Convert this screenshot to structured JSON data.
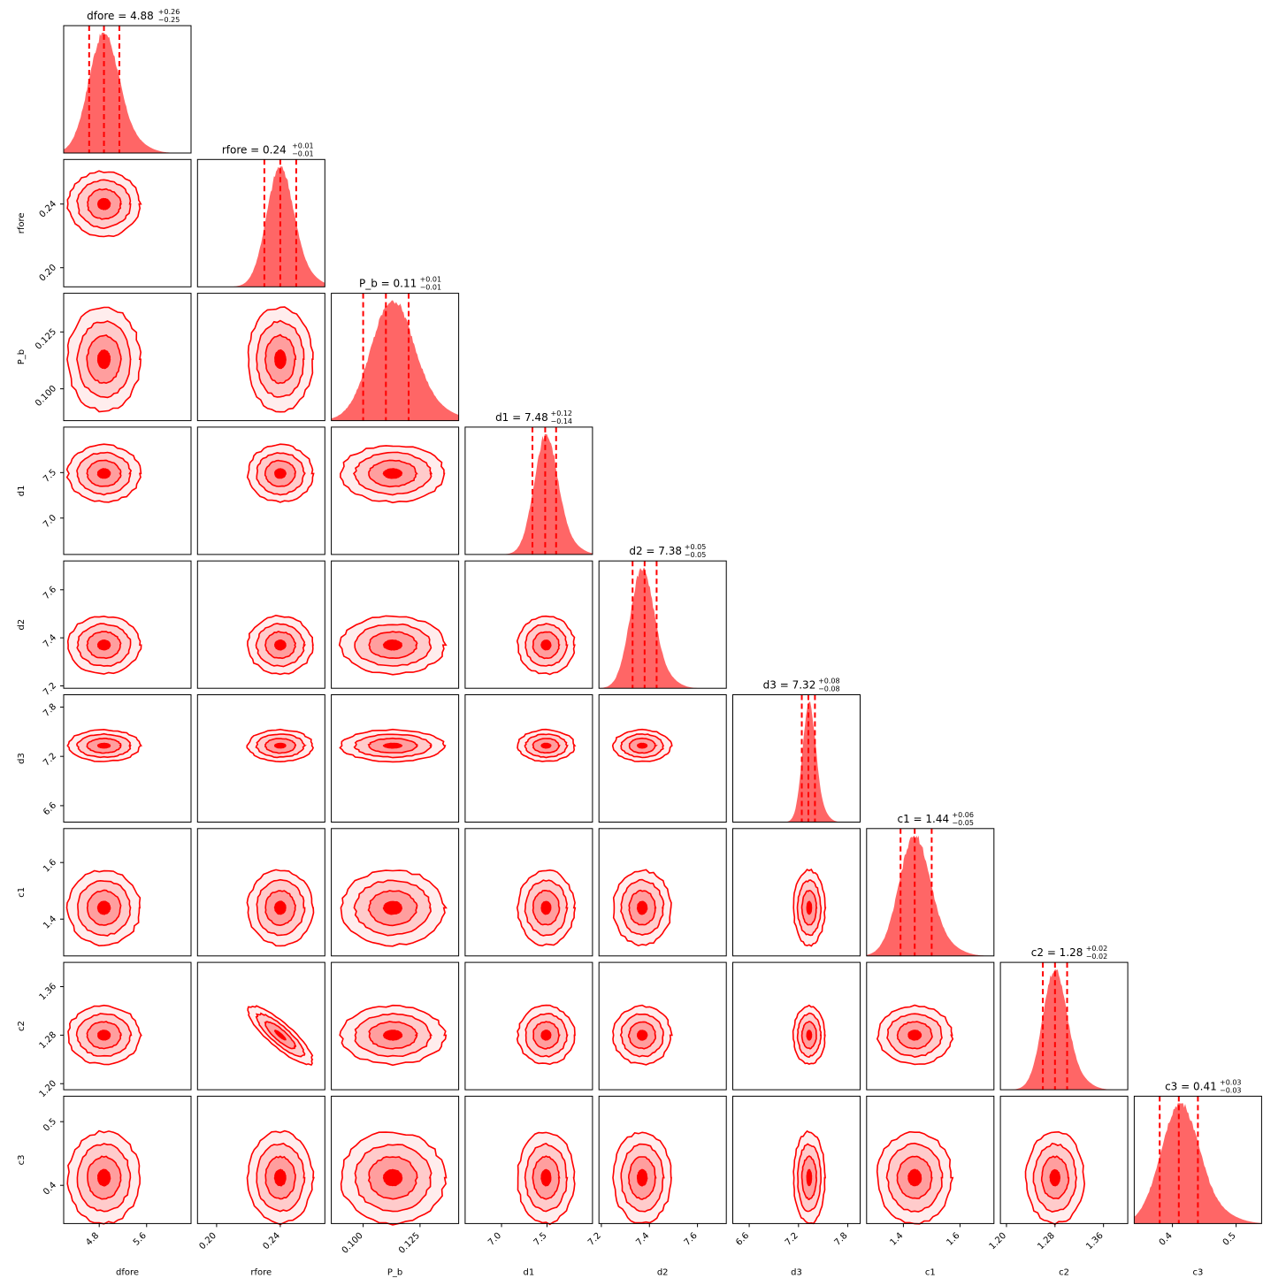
{
  "chart_data": {
    "type": "corner",
    "color": "#ff0000",
    "parameters": [
      {
        "name": "dfore",
        "label": "dfore",
        "median": 4.88,
        "plus": "0.26",
        "minus": "0.25",
        "range": [
          4.2,
          6.35
        ],
        "peak": 4.88,
        "sigma": 0.255,
        "ticks": [
          4.8,
          5.6
        ],
        "tick_labels": [
          "4.8",
          "5.6"
        ],
        "title": {
          "main": "dfore = 4.88",
          "sup": "+0.26",
          "sub": "−0.25"
        }
      },
      {
        "name": "rfore",
        "label": "rfore",
        "median": 0.24,
        "plus": "0.01",
        "minus": "0.01",
        "range": [
          0.188,
          0.268
        ],
        "peak": 0.24,
        "sigma": 0.0085,
        "ticks": [
          0.2,
          0.24
        ],
        "tick_labels": [
          "0.20",
          "0.24"
        ],
        "title": {
          "main": "rfore = 0.24",
          "sup": "+0.01",
          "sub": "−0.01"
        }
      },
      {
        "name": "P_b",
        "label": "P_b",
        "median": 0.11,
        "plus": "0.01",
        "minus": "0.01",
        "range": [
          0.086,
          0.142
        ],
        "peak": 0.113,
        "sigma": 0.0095,
        "ticks": [
          0.1,
          0.125
        ],
        "tick_labels": [
          "0.100",
          "0.125"
        ],
        "title": {
          "main": "P_b = 0.11",
          "sup": "+0.01",
          "sub": "−0.01"
        }
      },
      {
        "name": "d1",
        "label": "d1",
        "median": 7.48,
        "plus": "0.12",
        "minus": "0.14",
        "range": [
          6.6,
          8.0
        ],
        "peak": 7.49,
        "sigma": 0.13,
        "ticks": [
          7.0,
          7.5
        ],
        "tick_labels": [
          "7.0",
          "7.5"
        ],
        "title": {
          "main": "d1 = 7.48",
          "sup": "+0.12",
          "sub": "−0.14"
        }
      },
      {
        "name": "d2",
        "label": "d2",
        "median": 7.38,
        "plus": "0.05",
        "minus": "0.05",
        "range": [
          7.19,
          7.72
        ],
        "peak": 7.37,
        "sigma": 0.05,
        "ticks": [
          7.2,
          7.4,
          7.6
        ],
        "tick_labels": [
          "7.2",
          "7.4",
          "7.6"
        ],
        "title": {
          "main": "d2 = 7.38",
          "sup": "+0.05",
          "sub": "−0.05"
        }
      },
      {
        "name": "d3",
        "label": "d3",
        "median": 7.32,
        "plus": "0.08",
        "minus": "0.08",
        "range": [
          6.4,
          7.95
        ],
        "peak": 7.33,
        "sigma": 0.08,
        "ticks": [
          6.6,
          7.2,
          7.8
        ],
        "tick_labels": [
          "6.6",
          "7.2",
          "7.8"
        ],
        "title": {
          "main": "d3 = 7.32",
          "sup": "+0.08",
          "sub": "−0.08"
        }
      },
      {
        "name": "c1",
        "label": "c1",
        "median": 1.44,
        "plus": "0.06",
        "minus": "0.05",
        "range": [
          1.27,
          1.72
        ],
        "peak": 1.44,
        "sigma": 0.055,
        "ticks": [
          1.4,
          1.6
        ],
        "tick_labels": [
          "1.4",
          "1.6"
        ],
        "title": {
          "main": "c1 = 1.44",
          "sup": "+0.06",
          "sub": "−0.05"
        }
      },
      {
        "name": "c2",
        "label": "c2",
        "median": 1.28,
        "plus": "0.02",
        "minus": "0.02",
        "range": [
          1.19,
          1.4
        ],
        "peak": 1.28,
        "sigma": 0.02,
        "ticks": [
          1.2,
          1.28,
          1.36
        ],
        "tick_labels": [
          "1.20",
          "1.28",
          "1.36"
        ],
        "title": {
          "main": "c2 = 1.28",
          "sup": "+0.02",
          "sub": "−0.02"
        }
      },
      {
        "name": "c3",
        "label": "c3",
        "median": 0.41,
        "plus": "0.03",
        "minus": "0.03",
        "range": [
          0.34,
          0.54
        ],
        "peak": 0.412,
        "sigma": 0.03,
        "ticks": [
          0.4,
          0.5
        ],
        "tick_labels": [
          "0.4",
          "0.5"
        ],
        "title": {
          "main": "c3 = 0.41",
          "sup": "+0.03",
          "sub": "−0.03"
        }
      }
    ],
    "contour_levels": 3,
    "grid": false,
    "legend": "none"
  }
}
